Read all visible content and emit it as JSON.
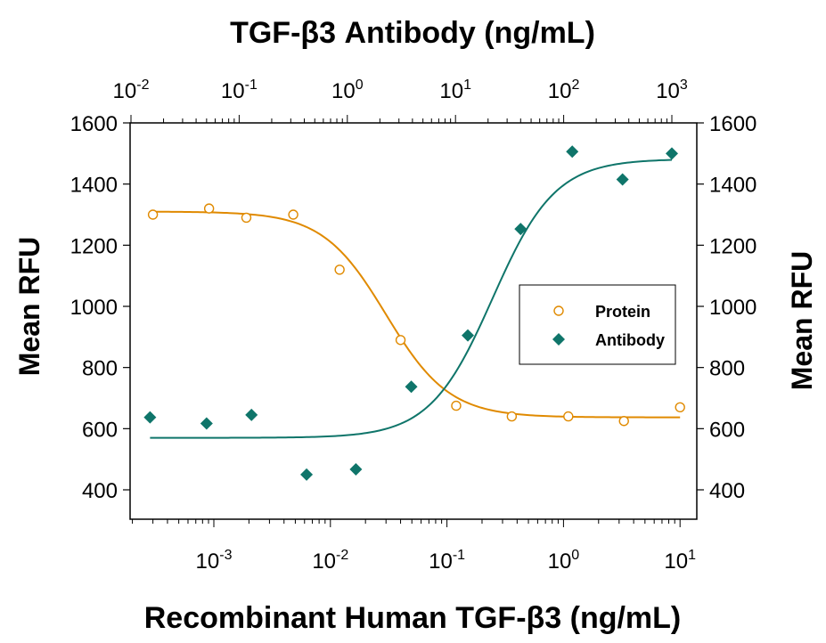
{
  "chart_data": {
    "type": "scatter",
    "title": "TGF-β3 Antibody (ng/mL)",
    "xlabel": "Recombinant Human TGF-β3 (ng/mL)",
    "ylabel_left": "Mean RFU",
    "ylabel_right": "Mean RFU",
    "x_scale": "log",
    "x_range": [
      0.0002,
      20
    ],
    "x_top_scale": "log",
    "x_top_range": [
      0.01,
      1000
    ],
    "ylim": [
      300,
      1600
    ],
    "y_ticks": [
      "400",
      "600",
      "800",
      "1000",
      "1200",
      "1400",
      "1600"
    ],
    "x_bottom_ticks": [
      {
        "value": 0.001,
        "base": "10",
        "exp": "-3"
      },
      {
        "value": 0.01,
        "base": "10",
        "exp": "-2"
      },
      {
        "value": 0.1,
        "base": "10",
        "exp": "-1"
      },
      {
        "value": 1,
        "base": "10",
        "exp": "0"
      },
      {
        "value": 10,
        "base": "10",
        "exp": "1"
      }
    ],
    "x_top_ticks": [
      {
        "value": 0.01,
        "base": "10",
        "exp": "-2"
      },
      {
        "value": 0.1,
        "base": "10",
        "exp": "-1"
      },
      {
        "value": 1,
        "base": "10",
        "exp": "0"
      },
      {
        "value": 10,
        "base": "10",
        "exp": "1"
      },
      {
        "value": 100,
        "base": "10",
        "exp": "2"
      },
      {
        "value": 1000,
        "base": "10",
        "exp": "3"
      }
    ],
    "legend": {
      "position": "right",
      "entries": [
        "Protein",
        "Antibody"
      ]
    },
    "grid": false,
    "series": [
      {
        "name": "Protein",
        "axis": "bottom",
        "marker": "open-circle",
        "color": "#e08a00",
        "x": [
          0.0003,
          0.00091,
          0.0019,
          0.0048,
          0.012,
          0.04,
          0.12,
          0.36,
          1.1,
          3.3,
          10
        ],
        "y": [
          1300,
          1320,
          1290,
          1300,
          1120,
          890,
          675,
          640,
          640,
          625,
          670
        ],
        "fit": {
          "top": 1310,
          "bottom": 637,
          "ec50": 0.03,
          "hill": 1.6
        }
      },
      {
        "name": "Antibody",
        "axis": "top",
        "marker": "filled-diamond",
        "color": "#0f756a",
        "x": [
          0.015,
          0.05,
          0.13,
          0.42,
          1.2,
          3.9,
          13,
          40,
          120,
          350,
          1000
        ],
        "y": [
          637,
          617,
          645,
          450,
          467,
          737,
          905,
          1253,
          1506,
          1415,
          1500
        ],
        "fit": {
          "top": 1482,
          "bottom": 570,
          "ec50": 22,
          "hill": 1.5
        }
      }
    ],
    "colors": {
      "protein": "#e08a00",
      "antibody": "#0f756a",
      "axis": "#000000"
    }
  }
}
